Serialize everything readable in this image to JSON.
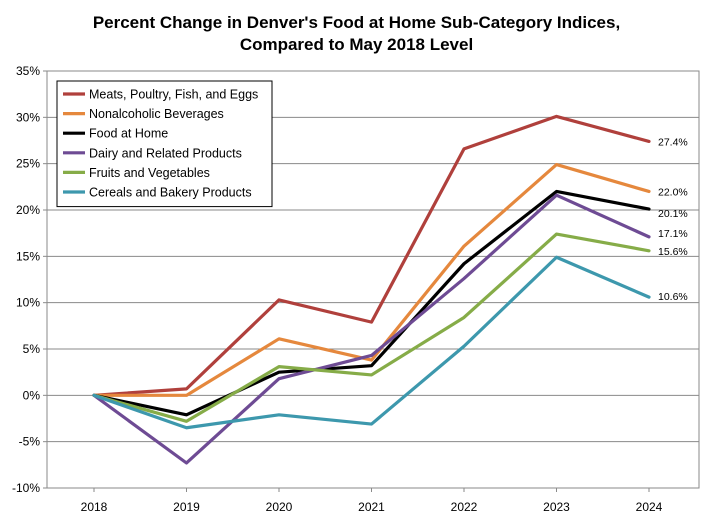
{
  "chart_data": {
    "type": "line",
    "title_line1": "Percent Change in Denver's Food at Home Sub-Category Indices,",
    "title_line2": "Compared to May 2018 Level",
    "xlabel": "",
    "ylabel": "",
    "x": [
      "2018",
      "2019",
      "2020",
      "2021",
      "2022",
      "2023",
      "2024"
    ],
    "ylim": [
      -10,
      35
    ],
    "ytick_values": [
      -10,
      -5,
      0,
      5,
      10,
      15,
      20,
      25,
      30,
      35
    ],
    "ytick_labels": [
      "-10%",
      "-5%",
      "0%",
      "5%",
      "10%",
      "15%",
      "20%",
      "25%",
      "30%",
      "35%"
    ],
    "grid": "horizontal",
    "legend_position": "top-left",
    "series": [
      {
        "name": "Meats, Poultry, Fish, and Eggs",
        "color": "#b0403c",
        "values": [
          0,
          0.7,
          10.3,
          7.9,
          26.6,
          30.1,
          27.4
        ],
        "end_label": "27.4%"
      },
      {
        "name": "Nonalcoholic Beverages",
        "color": "#e5883d",
        "values": [
          0,
          0,
          6.1,
          3.8,
          16.1,
          24.9,
          22.0
        ],
        "end_label": "22.0%"
      },
      {
        "name": "Food at Home",
        "color": "#000000",
        "values": [
          0,
          -2.1,
          2.5,
          3.2,
          14.2,
          22.0,
          20.1
        ],
        "end_label": "20.1%"
      },
      {
        "name": "Dairy and Related Products",
        "color": "#6e4b94",
        "values": [
          0,
          -7.3,
          1.8,
          4.3,
          12.6,
          21.6,
          17.1
        ],
        "end_label": "17.1%"
      },
      {
        "name": "Fruits and Vegetables",
        "color": "#86ac48",
        "values": [
          0,
          -2.8,
          3.1,
          2.2,
          8.4,
          17.4,
          15.6
        ],
        "end_label": "15.6%"
      },
      {
        "name": "Cereals and Bakery Products",
        "color": "#3d98ad",
        "values": [
          0,
          -3.5,
          -2.1,
          -3.1,
          5.3,
          14.9,
          10.6
        ],
        "end_label": "10.6%"
      }
    ]
  }
}
